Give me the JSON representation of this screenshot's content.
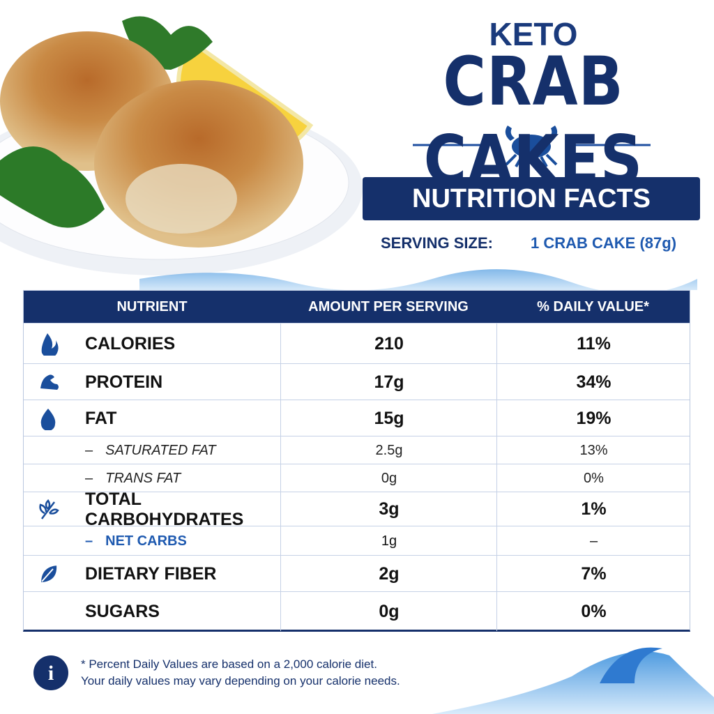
{
  "header": {
    "kicker": "KETO",
    "title": "CRAB CAKES"
  },
  "banner": "NUTRITION FACTS",
  "serving": {
    "label": "SERVING SIZE:",
    "value": "1 CRAB CAKE (87g)"
  },
  "table": {
    "columns": [
      "NUTRIENT",
      "AMOUNT PER SERVING",
      "% DAILY VALUE*"
    ],
    "rows": [
      [
        "CALORIES",
        "210",
        "11%"
      ],
      [
        "PROTEIN",
        "17g",
        "34%"
      ],
      [
        "FAT",
        "15g",
        "19%"
      ],
      [
        "SATURATED FAT",
        "2.5g",
        "13%"
      ],
      [
        "TRANS FAT",
        "0g",
        "0%"
      ],
      [
        "TOTAL CARBOHYDRATES",
        "3g",
        "1%"
      ],
      [
        "NET CARBS",
        "1g",
        "–"
      ],
      [
        "DIETARY FIBER",
        "2g",
        "7%"
      ],
      [
        "SUGARS",
        "0g",
        "0%"
      ]
    ]
  },
  "footnote": [
    "* Percent Daily Values are based on a 2,000 calorie diet.",
    "Your daily values may vary depending on your calorie needs."
  ]
}
